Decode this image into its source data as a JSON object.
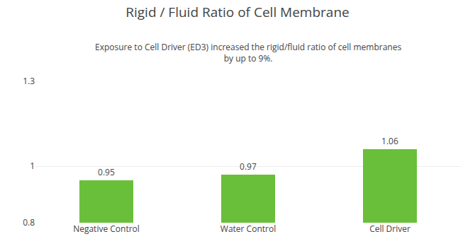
{
  "chart_data": {
    "type": "bar",
    "title": "Rigid / Fluid Ratio of Cell Membrane",
    "subtitle": "Exposure to Cell Driver (ED3) increased the rigid/fluid ratio of cell membranes\nby up to 9%.",
    "categories": [
      "Negative Control",
      "Water Control",
      "Cell Driver"
    ],
    "values": [
      0.95,
      0.97,
      1.06
    ],
    "color": "#6abf3a",
    "ylim": [
      0.8,
      1.3
    ],
    "yticks": [
      0.8,
      1,
      1.3
    ],
    "grid": true,
    "data_labels": true
  }
}
